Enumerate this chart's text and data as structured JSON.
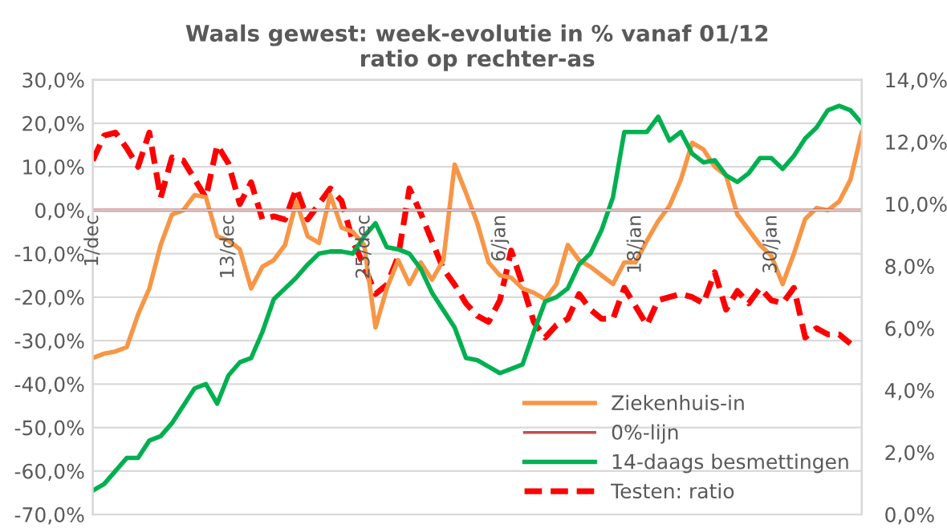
{
  "chart_data": {
    "type": "line",
    "title": "Waals gewest: week-evolutie in % vanaf 01/12",
    "subtitle": "ratio op rechter-as",
    "categories": [
      "1/dec",
      null,
      null,
      null,
      null,
      null,
      null,
      null,
      null,
      null,
      null,
      null,
      "13/dec",
      null,
      null,
      null,
      null,
      null,
      null,
      null,
      null,
      null,
      null,
      null,
      "25/dec",
      null,
      null,
      null,
      null,
      null,
      null,
      null,
      null,
      null,
      null,
      null,
      "6/jan",
      null,
      null,
      null,
      null,
      null,
      null,
      null,
      null,
      null,
      null,
      null,
      "18/jan",
      null,
      null,
      null,
      null,
      null,
      null,
      null,
      null,
      null,
      null,
      null,
      "30/jan",
      null,
      null,
      null,
      null,
      null,
      null,
      null,
      null
    ],
    "ylim": [
      -70,
      30
    ],
    "yticks": [
      {
        "value": -70,
        "label": "-70,0%"
      },
      {
        "value": -60,
        "label": "-60,0%"
      },
      {
        "value": -50,
        "label": "-50,0%"
      },
      {
        "value": -40,
        "label": "-40,0%"
      },
      {
        "value": -30,
        "label": "-30,0%"
      },
      {
        "value": -20,
        "label": "-20,0%"
      },
      {
        "value": -10,
        "label": "-10,0%"
      },
      {
        "value": 0,
        "label": "0,0%"
      },
      {
        "value": 10,
        "label": "10,0%"
      },
      {
        "value": 20,
        "label": "20,0%"
      },
      {
        "value": 30,
        "label": "30,0%"
      }
    ],
    "y2lim": [
      0,
      14
    ],
    "y2ticks": [
      {
        "value": 0,
        "label": "0,0%"
      },
      {
        "value": 2,
        "label": "2,0%"
      },
      {
        "value": 4,
        "label": "4,0%"
      },
      {
        "value": 6,
        "label": "6,0%"
      },
      {
        "value": 8,
        "label": "8,0%"
      },
      {
        "value": 10,
        "label": "10,0%"
      },
      {
        "value": 12,
        "label": "12,0%"
      },
      {
        "value": 14,
        "label": "14,0%"
      }
    ],
    "grid": "y",
    "legend": "bottom right",
    "marker": "none",
    "series": [
      {
        "name": "Ziekenhuis-in",
        "color": "#f79646",
        "line_style": "solid",
        "values": [
          -34,
          -33,
          -32.5,
          -31.5,
          -24,
          -18,
          -8,
          -1,
          0,
          3.5,
          3,
          -6,
          -7,
          -9,
          -18,
          -13,
          -11.5,
          -8,
          2,
          -6,
          -7.5,
          3.5,
          -4,
          -5,
          -8,
          -27,
          -18,
          -11.5,
          -17,
          -12,
          -16,
          -11.5,
          10.5,
          4,
          -3,
          -12,
          -15,
          -15.5,
          -18,
          -19,
          -20.5,
          -17,
          -8,
          -11.5,
          -13,
          -15,
          -17,
          -12,
          -12,
          -7,
          -2.5,
          1,
          7,
          15.5,
          14,
          10,
          8,
          -1,
          -4.5,
          -8,
          -10.5,
          -17,
          -10,
          -2,
          0.5,
          0,
          2,
          7,
          18
        ]
      },
      {
        "name": "0%-lijn",
        "color": "#c0504d",
        "line_style": "solid",
        "values": [
          0,
          0,
          0,
          0,
          0,
          0,
          0,
          0,
          0,
          0,
          0,
          0,
          0,
          0,
          0,
          0,
          0,
          0,
          0,
          0,
          0,
          0,
          0,
          0,
          0,
          0,
          0,
          0,
          0,
          0,
          0,
          0,
          0,
          0,
          0,
          0,
          0,
          0,
          0,
          0,
          0,
          0,
          0,
          0,
          0,
          0,
          0,
          0,
          0,
          0,
          0,
          0,
          0,
          0,
          0,
          0,
          0,
          0,
          0,
          0,
          0,
          0,
          0,
          0,
          0,
          0,
          0,
          0,
          0
        ]
      },
      {
        "name": "14-daags besmettingen",
        "color": "#00b050",
        "line_style": "solid",
        "values": [
          -64.5,
          -63,
          -60,
          -57,
          -57,
          -53,
          -52,
          -49,
          -45,
          -41,
          -40,
          -44.5,
          -38,
          -35,
          -34,
          -28,
          -20.5,
          -18,
          -15.5,
          -12.5,
          -10,
          -9.5,
          -9.5,
          -10,
          -6,
          -3,
          -8.5,
          -9,
          -10,
          -13.5,
          -19,
          -23,
          -27,
          -34,
          -34.5,
          -36,
          -37.5,
          -36.5,
          -35.5,
          -28,
          -21,
          -20,
          -18,
          -12.5,
          -10,
          -4.5,
          3,
          18,
          18,
          18,
          21.5,
          16,
          18,
          13,
          11,
          11.5,
          8,
          6.5,
          8.5,
          12,
          12,
          9.5,
          12.5,
          16.5,
          19,
          23,
          24,
          23,
          20
        ]
      },
      {
        "name": "Testen: ratio",
        "color": "#ff0000",
        "line_style": "dashed",
        "axis": "y2",
        "values": [
          11.4,
          12.2,
          12.3,
          11.8,
          11.2,
          12.3,
          10.2,
          11.5,
          11.4,
          10.8,
          10.2,
          11.9,
          11.3,
          10.0,
          10.7,
          9.5,
          9.6,
          9.5,
          10.5,
          9.5,
          10.0,
          10.5,
          10.1,
          8.8,
          8.0,
          7.1,
          7.4,
          8.3,
          10.5,
          9.7,
          8.8,
          7.9,
          7.4,
          6.8,
          6.4,
          6.2,
          6.9,
          8.5,
          7.4,
          6.2,
          5.7,
          6.1,
          6.3,
          7.1,
          6.6,
          6.3,
          6.3,
          7.3,
          6.7,
          6.1,
          6.9,
          7.0,
          7.1,
          7.0,
          6.8,
          7.8,
          6.6,
          7.2,
          6.8,
          7.3,
          6.9,
          6.8,
          7.3,
          5.7,
          6.0,
          5.8,
          5.8,
          5.5,
          null
        ]
      }
    ]
  }
}
